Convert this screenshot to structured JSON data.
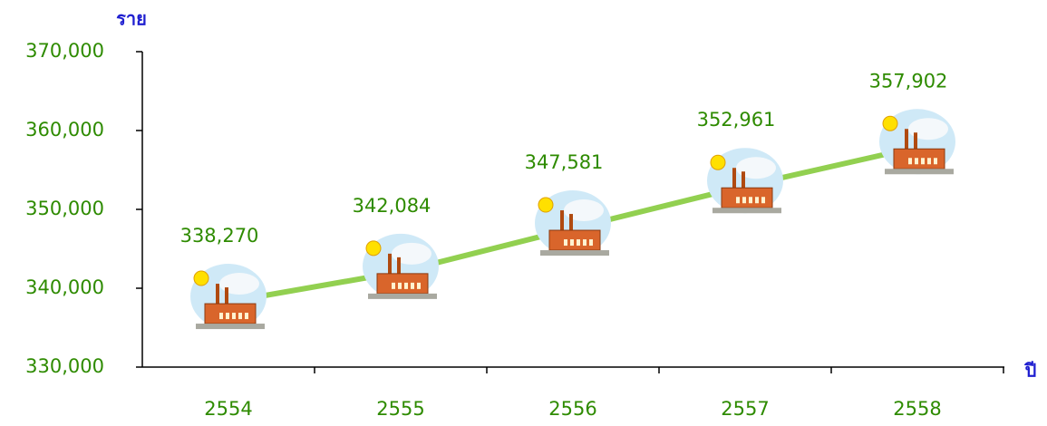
{
  "chart_data": {
    "type": "line",
    "x_label": "ปี",
    "y_label": "ราย",
    "categories": [
      "2554",
      "2555",
      "2556",
      "2557",
      "2558"
    ],
    "series": [
      {
        "values": [
          338270,
          342084,
          347581,
          352961,
          357902
        ],
        "value_labels": [
          "338,270",
          "342,084",
          "347,581",
          "352,961",
          "357,902"
        ],
        "color": "#92d050"
      }
    ],
    "ylim": [
      330000,
      370000
    ],
    "yticks": [
      {
        "value": 330000,
        "label": "330,000"
      },
      {
        "value": 340000,
        "label": "340,000"
      },
      {
        "value": 350000,
        "label": "350,000"
      },
      {
        "value": 360000,
        "label": "360,000"
      },
      {
        "value": 370000,
        "label": "370,000"
      }
    ],
    "grid": false
  }
}
